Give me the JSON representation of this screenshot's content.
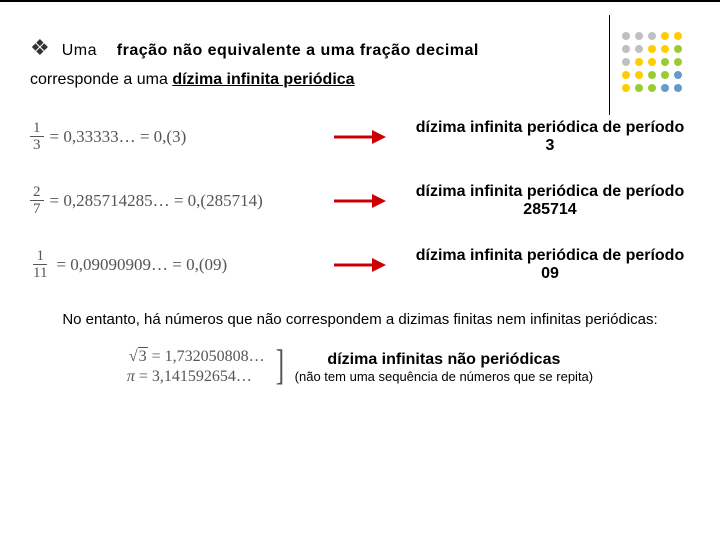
{
  "decoration": {
    "dot_colors": [
      [
        "#c0c0c0",
        "#c0c0c0",
        "#c0c0c0",
        "#ffcc00",
        "#ffcc00"
      ],
      [
        "#c0c0c0",
        "#c0c0c0",
        "#ffcc00",
        "#ffcc00",
        "#99cc33"
      ],
      [
        "#c0c0c0",
        "#ffcc00",
        "#ffcc00",
        "#99cc33",
        "#99cc33"
      ],
      [
        "#ffcc00",
        "#ffcc00",
        "#99cc33",
        "#99cc33",
        "#6699cc"
      ],
      [
        "#ffcc00",
        "#99cc33",
        "#99cc33",
        "#6699cc",
        "#6699cc"
      ]
    ],
    "dot_radius": 4,
    "dot_spacing": 13
  },
  "bullet_glyph": "❖",
  "intro": {
    "prefix": "Uma",
    "bold_phrase": "fração não equivalente a uma fração decimal",
    "continuation_prefix": "corresponde a uma ",
    "underlined": "dízima infinita periódica"
  },
  "arrow": {
    "color": "#cc0000"
  },
  "examples": [
    {
      "num": "1",
      "den": "3",
      "expansion": "= 0,33333… = 0,(3)",
      "label": "dízima infinita periódica de período 3"
    },
    {
      "num": "2",
      "den": "7",
      "expansion": "= 0,285714285… = 0,(285714)",
      "label": "dízima infinita periódica de período 285714"
    },
    {
      "num": "1",
      "den": "11",
      "expansion": "= 0,09090909… = 0,(09)",
      "label": "dízima infinita periódica de período 09"
    }
  ],
  "footer": "No entanto, há números que não correspondem a dizimas finitas nem infinitas periódicas:",
  "nonperiodic": {
    "eq1_left": "3",
    "eq1_right": "= 1,732050808…",
    "eq2_left": "π",
    "eq2_right": "= 3,141592654…",
    "title": "dízima infinitas não periódicas",
    "subtitle": "(não tem uma sequência de números que se repita)"
  }
}
